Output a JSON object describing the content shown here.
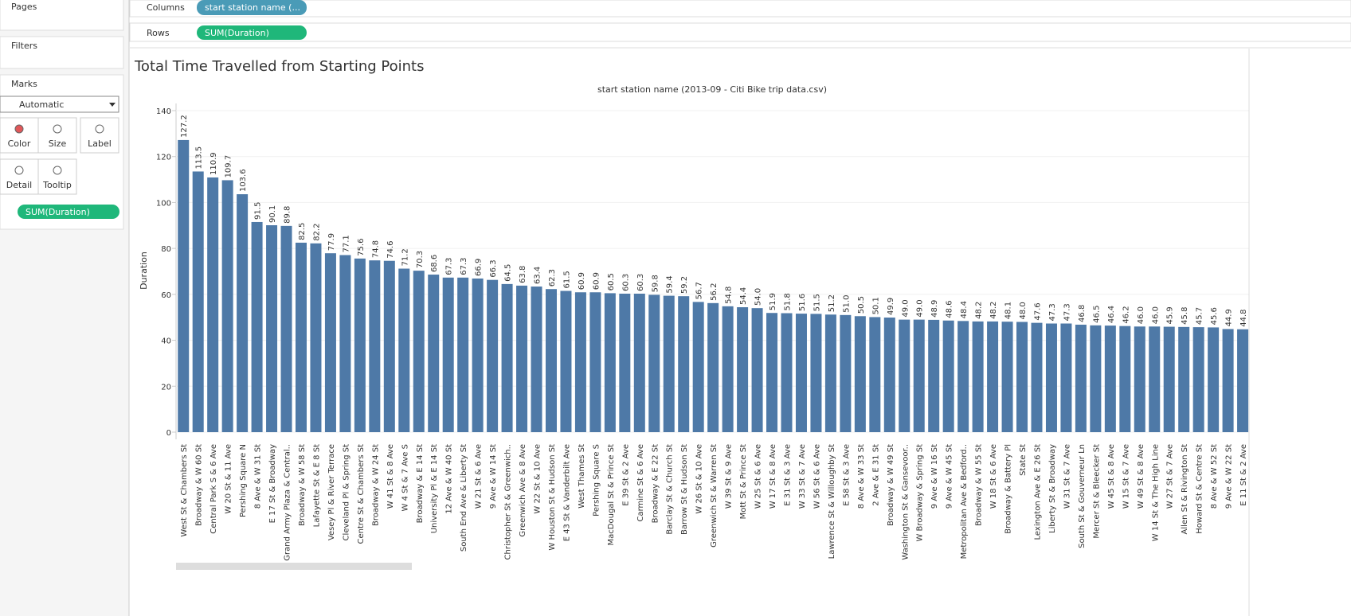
{
  "ui": {
    "pages": "Pages",
    "filters": "Filters",
    "marks": "Marks",
    "mark_type": "Automatic",
    "buttons": [
      "Color",
      "Size",
      "Label",
      "Detail",
      "Tooltip"
    ],
    "label_pill": "SUM(Duration)",
    "columns_label": "Columns",
    "columns_pill": "start station name (...",
    "rows_label": "Rows",
    "rows_pill": "SUM(Duration)"
  },
  "chart_data": {
    "type": "bar",
    "title": "Total Time Travelled from Starting Points",
    "subtitle": "start station name (2013-09 - Citi Bike trip data.csv)",
    "y_label": "Duration",
    "color": "#4e79a7",
    "categories": [
      "West St & Chambers St",
      "Broadway & W 60 St",
      "Central Park S & 6 Ave",
      "W 20 St & 11 Ave",
      "Pershing Square N",
      "8 Ave & W 31 St",
      "E 17 St & Broadway",
      "Grand Army Plaza & Central..",
      "Broadway & W 58 St",
      "Lafayette St & E 8 St",
      "Vesey Pl & River Terrace",
      "Cleveland Pl & Spring St",
      "Centre St & Chambers St",
      "Broadway & W 24 St",
      "W 41 St & 8 Ave",
      "W 4 St & 7 Ave S",
      "Broadway & E 14 St",
      "University Pl & E 14 St",
      "12 Ave & W 40 St",
      "South End Ave & Liberty St",
      "W 21 St & 6 Ave",
      "9 Ave & W 14 St",
      "Christopher St & Greenwich..",
      "Greenwich Ave & 8 Ave",
      "W 22 St & 10 Ave",
      "W Houston St & Hudson St",
      "E 43 St & Vanderbilt Ave",
      "West Thames St",
      "Pershing Square S",
      "MacDougal St & Prince St",
      "E 39 St & 2 Ave",
      "Carmine St & 6 Ave",
      "Broadway & E 22 St",
      "Barclay St & Church St",
      "Barrow St & Hudson St",
      "W 26 St & 10 Ave",
      "Greenwich St & Warren St",
      "W 39 St & 9 Ave",
      "Mott St & Prince St",
      "W 25 St & 6 Ave",
      "W 17 St & 8 Ave",
      "E 31 St & 3 Ave",
      "W 33 St & 7 Ave",
      "W 56 St & 6 Ave",
      "Lawrence St & Willoughby St",
      "E 58 St & 3 Ave",
      "8 Ave & W 33 St",
      "2 Ave & E 31 St",
      "Broadway & W 49 St",
      "Washington St & Gansevoor..",
      "W Broadway & Spring St",
      "9 Ave & W 16 St",
      "9 Ave & W 45 St",
      "Metropolitan Ave & Bedford..",
      "Broadway & W 55 St",
      "W 18 St & 6 Ave",
      "Broadway & Battery Pl",
      "State St",
      "Lexington Ave & E 26 St",
      "Liberty St & Broadway",
      "W 31 St & 7 Ave",
      "South St & Gouverneur Ln",
      "Mercer St & Bleecker St",
      "W 45 St & 8 Ave",
      "W 15 St & 7 Ave",
      "W 49 St & 8 Ave",
      "W 14 St & The High Line",
      "W 27 St & 7 Ave",
      "Allen St & Rivington St",
      "Howard St & Centre St",
      "8 Ave & W 52 St",
      "9 Ave & W 22 St",
      "E 11 St & 2 Ave"
    ],
    "values": [
      127.2,
      113.5,
      110.9,
      109.7,
      103.6,
      91.5,
      90.1,
      89.8,
      82.5,
      82.2,
      77.9,
      77.1,
      75.6,
      74.8,
      74.6,
      71.2,
      70.3,
      68.6,
      67.3,
      67.3,
      66.9,
      66.3,
      64.5,
      63.8,
      63.4,
      62.3,
      61.5,
      60.9,
      60.9,
      60.5,
      60.3,
      60.3,
      59.8,
      59.4,
      59.2,
      56.7,
      56.2,
      54.8,
      54.4,
      54.0,
      51.9,
      51.8,
      51.6,
      51.5,
      51.2,
      51.0,
      50.5,
      50.1,
      49.9,
      49.0,
      49.0,
      48.9,
      48.6,
      48.4,
      48.2,
      48.2,
      48.1,
      48.0,
      47.6,
      47.3,
      47.3,
      46.8,
      46.5,
      46.4,
      46.2,
      46.0,
      46.0,
      45.9,
      45.8,
      45.7,
      45.6,
      44.9,
      44.8
    ],
    "value_labels": [
      "127.2",
      "113.5",
      "110.9",
      "109.7",
      "103.6",
      "91.5",
      "90.1",
      "89.8",
      "82.5",
      "82.2",
      "77.9",
      "77.1",
      "75.6",
      "74.8",
      "74.6",
      "71.2",
      "70.3",
      "68.6",
      "67.3",
      "67.3",
      "66.9",
      "66.3",
      "64.5",
      "63.8",
      "63.4",
      "62.3",
      "61.5",
      "60.9",
      "60.9",
      "60.5",
      "60.3",
      "60.3",
      "59.8",
      "59.4",
      "59.2",
      "56.7",
      "56.2",
      "54.8",
      "54.4",
      "54.0",
      "51.9",
      "51.8",
      "51.6",
      "51.5",
      "51.2",
      "51.0",
      "50.5",
      "50.1",
      "49.9",
      "49.0",
      "49.0",
      "48.9",
      "48.6",
      "48.4",
      "48.2",
      "48.2",
      "48.1",
      "48.0",
      "47.6",
      "47.3",
      "47.3",
      "46.8",
      "46.5",
      "46.4",
      "46.2",
      "46.0",
      "46.0",
      "45.9",
      "45.8",
      "45.7",
      "45.6",
      "44.9",
      "44.8"
    ],
    "ylim": [
      0,
      140
    ],
    "yticks": [
      0,
      20,
      40,
      60,
      80,
      100,
      120,
      140
    ],
    "grid": true
  }
}
